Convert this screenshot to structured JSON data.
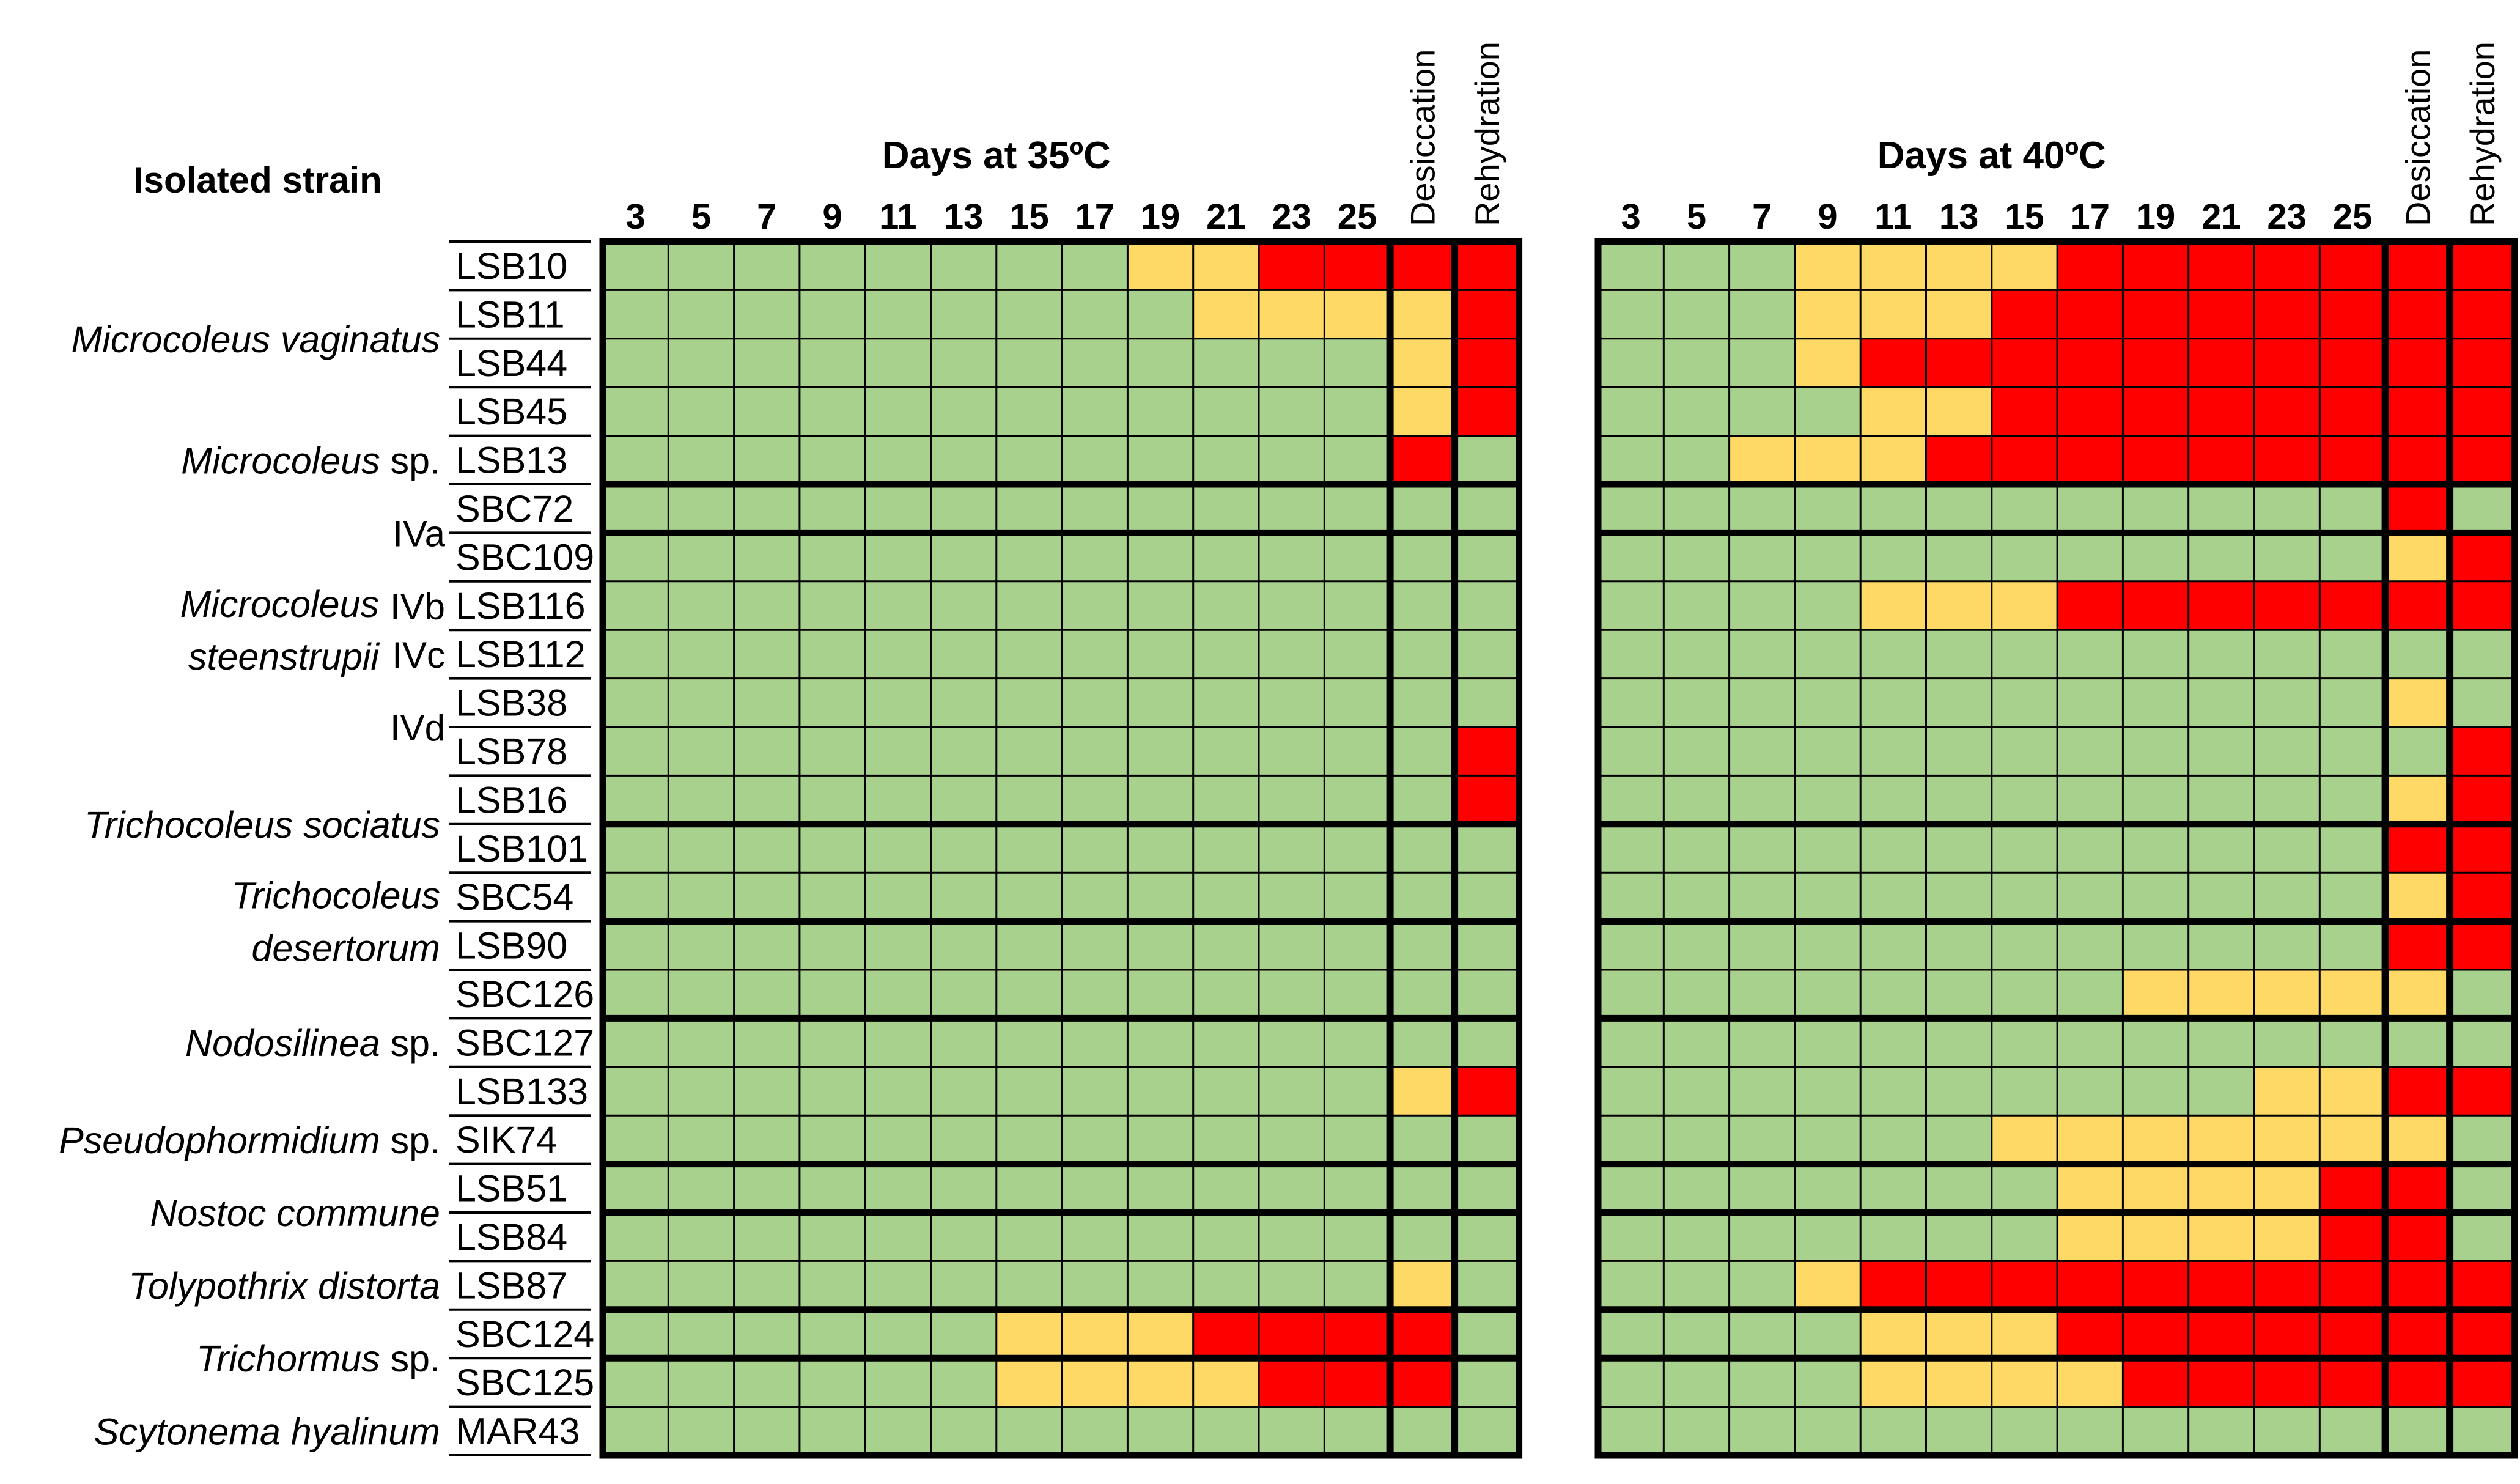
{
  "chart_data": {
    "type": "heatmap",
    "header_label": "Isolated strain",
    "colors": {
      "G": "#a9d18e",
      "Y": "#ffd966",
      "R": "#ff0000"
    },
    "panels": [
      {
        "title": "Days at 35ºC",
        "days": [
          "3",
          "5",
          "7",
          "9",
          "11",
          "13",
          "15",
          "17",
          "19",
          "21",
          "23",
          "25"
        ],
        "extra_columns": [
          "Desiccation",
          "Rehydration"
        ],
        "rows": [
          "GGGGGGGGYYRRRR",
          "GGGGGGGGGYYYYR",
          "GGGGGGGGGGGGYR",
          "GGGGGGGGGGGGYR",
          "GGGGGGGGGGGGRG",
          "GGGGGGGGGGGGGG",
          "GGGGGGGGGGGGGG",
          "GGGGGGGGGGGGGG",
          "GGGGGGGGGGGGGG",
          "GGGGGGGGGGGGGG",
          "GGGGGGGGGGGGGR",
          "GGGGGGGGGGGGGR",
          "GGGGGGGGGGGGGG",
          "GGGGGGGGGGGGGG",
          "GGGGGGGGGGGGGG",
          "GGGGGGGGGGGGGG",
          "GGGGGGGGGGGGGG",
          "GGGGGGGGGGGGYR",
          "GGGGGGGGGGGGGG",
          "GGGGGGGGGGGGGG",
          "GGGGGGGGGGGGGG",
          "GGGGGGGGGGGGYG",
          "GGGGGGYYYRRRRG",
          "GGGGGGYYYYRRRG",
          "GGGGGGGGGGGGGG"
        ]
      },
      {
        "title": "Days at 40ºC",
        "days": [
          "3",
          "5",
          "7",
          "9",
          "11",
          "13",
          "15",
          "17",
          "19",
          "21",
          "23",
          "25"
        ],
        "extra_columns": [
          "Desiccation",
          "Rehydration"
        ],
        "rows": [
          "GGGYYYYRRRRRRR",
          "GGGYYYRRRRRRRR",
          "GGGYRRRRRRRRRR",
          "GGGGYYRRRRRRRR",
          "GGYYYRRRRRRRRR",
          "GGGGGGGGGGGGRG",
          "GGGGGGGGGGGGYR",
          "GGGGYYYRRRRRRR",
          "GGGGGGGGGGGGGG",
          "GGGGGGGGGGGGYG",
          "GGGGGGGGGGGGGR",
          "GGGGGGGGGGGGYR",
          "GGGGGGGGGGGGRR",
          "GGGGGGGGGGGGYR",
          "GGGGGGGGGGGGRR",
          "GGGGGGGGYYYYYG",
          "GGGGGGGGGGGGGG",
          "GGGGGGGGGGYYRR",
          "GGGGGGYYYYYYYG",
          "GGGGGGGYYYYRRG",
          "GGGGGGGYYYYRRG",
          "GGGYRRRRRRRRRR",
          "GGGGYYYRRRRRRR",
          "GGGGYYYYRRRRRR",
          "GGGGGGGGGGGGGG"
        ]
      }
    ],
    "strains": [
      "LSB10",
      "LSB11",
      "LSB44",
      "LSB45",
      "LSB13",
      "SBC72",
      "SBC109",
      "LSB116",
      "LSB112",
      "LSB38",
      "LSB78",
      "LSB16",
      "LSB101",
      "SBC54",
      "LSB90",
      "SBC126",
      "SBC127",
      "LSB133",
      "SIK74",
      "LSB51",
      "LSB84",
      "LSB87",
      "SBC124",
      "SBC125",
      "MAR43"
    ],
    "group_breaks_after_rows": [
      4,
      5,
      11,
      13,
      15,
      18,
      19,
      21,
      22,
      24
    ],
    "species": [
      {
        "rows": [
          0,
          3
        ],
        "lines": [
          {
            "italic": "Microcoleus vaginatus",
            "plain": ""
          }
        ]
      },
      {
        "rows": [
          4,
          4
        ],
        "lines": [
          {
            "italic": "Microcoleus",
            "plain": " sp."
          }
        ]
      },
      {
        "rows": [
          5,
          10
        ],
        "lines": [
          {
            "italic": "Microcoleus",
            "plain": ""
          },
          {
            "italic": "steenstrupii",
            "plain": ""
          }
        ]
      },
      {
        "rows": [
          11,
          12
        ],
        "lines": [
          {
            "italic": "Trichocoleus sociatus",
            "plain": ""
          }
        ]
      },
      {
        "rows": [
          13,
          14
        ],
        "lines": [
          {
            "italic": "Trichocoleus",
            "plain": ""
          },
          {
            "italic": "desertorum",
            "plain": ""
          }
        ]
      },
      {
        "rows": [
          15,
          17
        ],
        "lines": [
          {
            "italic": "Nodosilinea",
            "plain": " sp."
          }
        ]
      },
      {
        "rows": [
          18,
          18
        ],
        "lines": [
          {
            "italic": "Pseudophormidium",
            "plain": " sp."
          }
        ]
      },
      {
        "rows": [
          19,
          20
        ],
        "lines": [
          {
            "italic": "Nostoc commune",
            "plain": ""
          }
        ]
      },
      {
        "rows": [
          21,
          21
        ],
        "lines": [
          {
            "italic": "Tolypothrix distorta",
            "plain": ""
          }
        ]
      },
      {
        "rows": [
          22,
          23
        ],
        "lines": [
          {
            "italic": "Trichormus",
            "plain": " sp."
          }
        ]
      },
      {
        "rows": [
          24,
          24
        ],
        "lines": [
          {
            "italic": "Scytonema hyalinum",
            "plain": ""
          }
        ]
      }
    ],
    "subgroups": [
      {
        "label": "IVa",
        "rows": [
          5,
          6
        ]
      },
      {
        "label": "IVb",
        "rows": [
          7,
          7
        ]
      },
      {
        "label": "IVc",
        "rows": [
          8,
          8
        ]
      },
      {
        "label": "IVd",
        "rows": [
          9,
          10
        ]
      }
    ]
  }
}
